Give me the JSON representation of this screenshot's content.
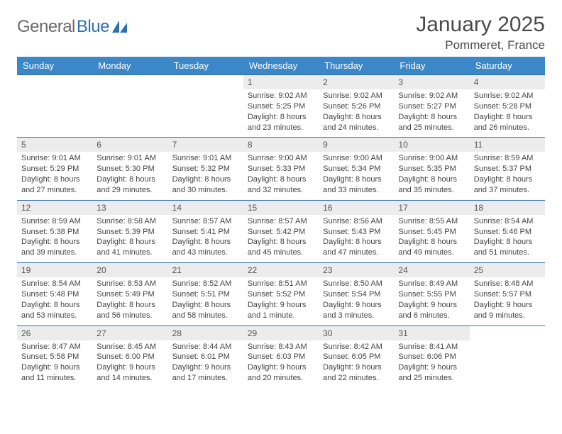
{
  "logo": {
    "word1": "General",
    "word2": "Blue"
  },
  "title": "January 2025",
  "location": "Pommeret, France",
  "colors": {
    "header_bg": "#3b87c8",
    "header_text": "#ffffff",
    "row_sep": "#2f6fb0",
    "daynum_bg": "#ececec",
    "text": "#444444",
    "logo_gray": "#6b6b6b",
    "logo_blue": "#2f6fb0",
    "page_bg": "#ffffff"
  },
  "typography": {
    "title_fontsize": 30,
    "location_fontsize": 17,
    "dayhead_fontsize": 13,
    "daynum_fontsize": 12,
    "detail_fontsize": 11
  },
  "day_headers": [
    "Sunday",
    "Monday",
    "Tuesday",
    "Wednesday",
    "Thursday",
    "Friday",
    "Saturday"
  ],
  "weeks": [
    [
      null,
      null,
      null,
      {
        "n": "1",
        "sr": "Sunrise: 9:02 AM",
        "ss": "Sunset: 5:25 PM",
        "dl": "Daylight: 8 hours and 23 minutes."
      },
      {
        "n": "2",
        "sr": "Sunrise: 9:02 AM",
        "ss": "Sunset: 5:26 PM",
        "dl": "Daylight: 8 hours and 24 minutes."
      },
      {
        "n": "3",
        "sr": "Sunrise: 9:02 AM",
        "ss": "Sunset: 5:27 PM",
        "dl": "Daylight: 8 hours and 25 minutes."
      },
      {
        "n": "4",
        "sr": "Sunrise: 9:02 AM",
        "ss": "Sunset: 5:28 PM",
        "dl": "Daylight: 8 hours and 26 minutes."
      }
    ],
    [
      {
        "n": "5",
        "sr": "Sunrise: 9:01 AM",
        "ss": "Sunset: 5:29 PM",
        "dl": "Daylight: 8 hours and 27 minutes."
      },
      {
        "n": "6",
        "sr": "Sunrise: 9:01 AM",
        "ss": "Sunset: 5:30 PM",
        "dl": "Daylight: 8 hours and 29 minutes."
      },
      {
        "n": "7",
        "sr": "Sunrise: 9:01 AM",
        "ss": "Sunset: 5:32 PM",
        "dl": "Daylight: 8 hours and 30 minutes."
      },
      {
        "n": "8",
        "sr": "Sunrise: 9:00 AM",
        "ss": "Sunset: 5:33 PM",
        "dl": "Daylight: 8 hours and 32 minutes."
      },
      {
        "n": "9",
        "sr": "Sunrise: 9:00 AM",
        "ss": "Sunset: 5:34 PM",
        "dl": "Daylight: 8 hours and 33 minutes."
      },
      {
        "n": "10",
        "sr": "Sunrise: 9:00 AM",
        "ss": "Sunset: 5:35 PM",
        "dl": "Daylight: 8 hours and 35 minutes."
      },
      {
        "n": "11",
        "sr": "Sunrise: 8:59 AM",
        "ss": "Sunset: 5:37 PM",
        "dl": "Daylight: 8 hours and 37 minutes."
      }
    ],
    [
      {
        "n": "12",
        "sr": "Sunrise: 8:59 AM",
        "ss": "Sunset: 5:38 PM",
        "dl": "Daylight: 8 hours and 39 minutes."
      },
      {
        "n": "13",
        "sr": "Sunrise: 8:58 AM",
        "ss": "Sunset: 5:39 PM",
        "dl": "Daylight: 8 hours and 41 minutes."
      },
      {
        "n": "14",
        "sr": "Sunrise: 8:57 AM",
        "ss": "Sunset: 5:41 PM",
        "dl": "Daylight: 8 hours and 43 minutes."
      },
      {
        "n": "15",
        "sr": "Sunrise: 8:57 AM",
        "ss": "Sunset: 5:42 PM",
        "dl": "Daylight: 8 hours and 45 minutes."
      },
      {
        "n": "16",
        "sr": "Sunrise: 8:56 AM",
        "ss": "Sunset: 5:43 PM",
        "dl": "Daylight: 8 hours and 47 minutes."
      },
      {
        "n": "17",
        "sr": "Sunrise: 8:55 AM",
        "ss": "Sunset: 5:45 PM",
        "dl": "Daylight: 8 hours and 49 minutes."
      },
      {
        "n": "18",
        "sr": "Sunrise: 8:54 AM",
        "ss": "Sunset: 5:46 PM",
        "dl": "Daylight: 8 hours and 51 minutes."
      }
    ],
    [
      {
        "n": "19",
        "sr": "Sunrise: 8:54 AM",
        "ss": "Sunset: 5:48 PM",
        "dl": "Daylight: 8 hours and 53 minutes."
      },
      {
        "n": "20",
        "sr": "Sunrise: 8:53 AM",
        "ss": "Sunset: 5:49 PM",
        "dl": "Daylight: 8 hours and 56 minutes."
      },
      {
        "n": "21",
        "sr": "Sunrise: 8:52 AM",
        "ss": "Sunset: 5:51 PM",
        "dl": "Daylight: 8 hours and 58 minutes."
      },
      {
        "n": "22",
        "sr": "Sunrise: 8:51 AM",
        "ss": "Sunset: 5:52 PM",
        "dl": "Daylight: 9 hours and 1 minute."
      },
      {
        "n": "23",
        "sr": "Sunrise: 8:50 AM",
        "ss": "Sunset: 5:54 PM",
        "dl": "Daylight: 9 hours and 3 minutes."
      },
      {
        "n": "24",
        "sr": "Sunrise: 8:49 AM",
        "ss": "Sunset: 5:55 PM",
        "dl": "Daylight: 9 hours and 6 minutes."
      },
      {
        "n": "25",
        "sr": "Sunrise: 8:48 AM",
        "ss": "Sunset: 5:57 PM",
        "dl": "Daylight: 9 hours and 9 minutes."
      }
    ],
    [
      {
        "n": "26",
        "sr": "Sunrise: 8:47 AM",
        "ss": "Sunset: 5:58 PM",
        "dl": "Daylight: 9 hours and 11 minutes."
      },
      {
        "n": "27",
        "sr": "Sunrise: 8:45 AM",
        "ss": "Sunset: 6:00 PM",
        "dl": "Daylight: 9 hours and 14 minutes."
      },
      {
        "n": "28",
        "sr": "Sunrise: 8:44 AM",
        "ss": "Sunset: 6:01 PM",
        "dl": "Daylight: 9 hours and 17 minutes."
      },
      {
        "n": "29",
        "sr": "Sunrise: 8:43 AM",
        "ss": "Sunset: 6:03 PM",
        "dl": "Daylight: 9 hours and 20 minutes."
      },
      {
        "n": "30",
        "sr": "Sunrise: 8:42 AM",
        "ss": "Sunset: 6:05 PM",
        "dl": "Daylight: 9 hours and 22 minutes."
      },
      {
        "n": "31",
        "sr": "Sunrise: 8:41 AM",
        "ss": "Sunset: 6:06 PM",
        "dl": "Daylight: 9 hours and 25 minutes."
      },
      null
    ]
  ]
}
